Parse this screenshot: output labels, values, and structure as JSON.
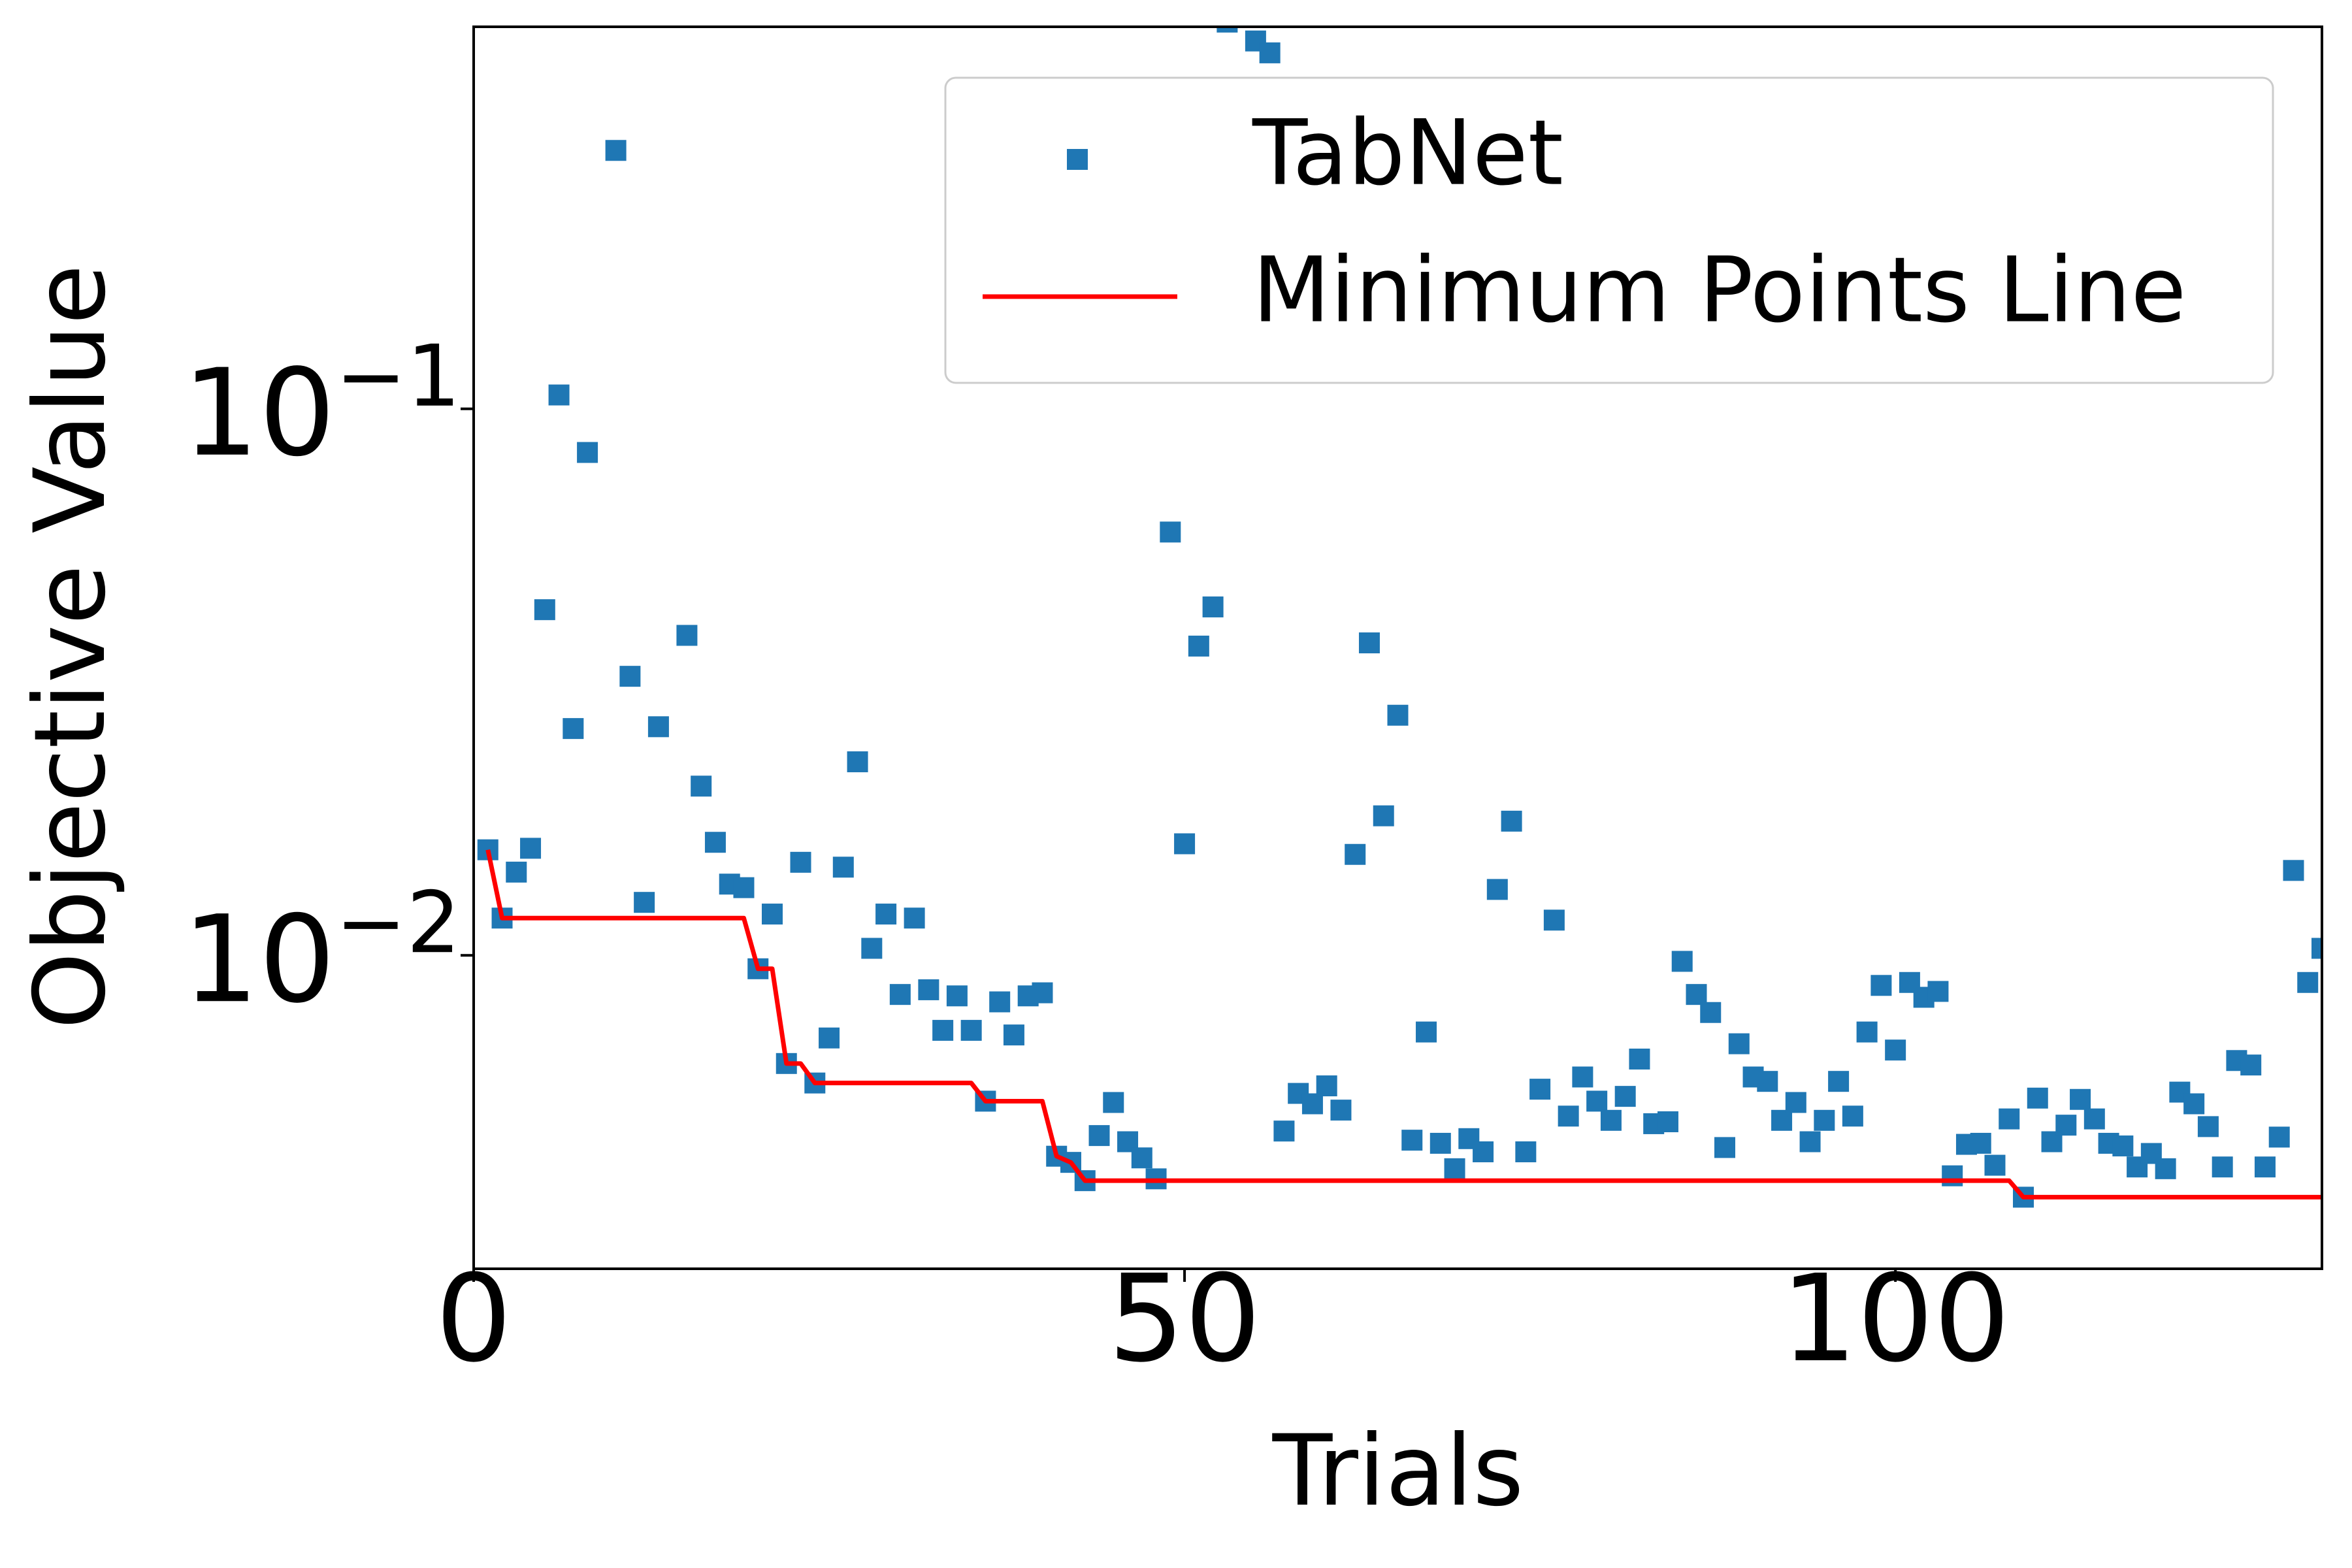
{
  "chart_data": {
    "type": "scatter",
    "xlabel": "Trials",
    "ylabel": "Objective Value",
    "yscale": "log",
    "xlim": [
      0,
      130
    ],
    "ylim": [
      0.00267,
      0.5
    ],
    "xticks": [
      0,
      50,
      100
    ],
    "yticks": [
      {
        "value": 0.01,
        "label": "10",
        "exponent": "−2"
      },
      {
        "value": 0.1,
        "label": "10",
        "exponent": "−1"
      }
    ],
    "legend": "upper right",
    "series": [
      {
        "name": "TabNet",
        "type": "scatter",
        "marker": "square",
        "color": "#1f77b4",
        "x": [
          1,
          2,
          3,
          4,
          5,
          6,
          7,
          8,
          10,
          11,
          12,
          13,
          15,
          16,
          17,
          18,
          19,
          20,
          21,
          22,
          23,
          24,
          25,
          26,
          27,
          28,
          29,
          30,
          31,
          32,
          33,
          34,
          35,
          36,
          37,
          38,
          39,
          40,
          41,
          42,
          43,
          44,
          45,
          46,
          47,
          48,
          49,
          50,
          51,
          52,
          53,
          55,
          56,
          57,
          58,
          59,
          60,
          61,
          62,
          63,
          64,
          65,
          66,
          67,
          68,
          69,
          70,
          71,
          72,
          73,
          74,
          75,
          76,
          77,
          78,
          79,
          80,
          81,
          82,
          83,
          84,
          85,
          86,
          87,
          88,
          89,
          90,
          91,
          92,
          93,
          94,
          95,
          96,
          97,
          98,
          99,
          100,
          101,
          102,
          103,
          104,
          105,
          106,
          107,
          108,
          109,
          110,
          111,
          112,
          113,
          114,
          115,
          116,
          117,
          118,
          119,
          120,
          121,
          122,
          123,
          124,
          125,
          126,
          127,
          128,
          129,
          130
        ],
        "values": [
          0.0156,
          0.0117,
          0.0142,
          0.0157,
          0.0429,
          0.106,
          0.026,
          0.0832,
          0.297,
          0.0324,
          0.0125,
          0.0262,
          0.0385,
          0.0204,
          0.0161,
          0.0135,
          0.0133,
          0.00945,
          0.0119,
          0.00634,
          0.0148,
          0.00584,
          0.00706,
          0.0145,
          0.0226,
          0.0103,
          0.0119,
          0.00848,
          0.0117,
          0.00865,
          0.00729,
          0.00843,
          0.00729,
          0.00541,
          0.00822,
          0.00715,
          0.00843,
          0.00854,
          0.00429,
          0.00418,
          0.00387,
          0.00468,
          0.00538,
          0.00456,
          0.00426,
          0.0039,
          0.0595,
          0.016,
          0.0368,
          0.0434,
          0.51,
          0.471,
          0.448,
          0.00477,
          0.00559,
          0.00535,
          0.00577,
          0.00521,
          0.0153,
          0.0373,
          0.018,
          0.0275,
          0.00459,
          0.00724,
          0.00453,
          0.00407,
          0.00462,
          0.00437,
          0.0132,
          0.0176,
          0.00437,
          0.00569,
          0.0116,
          0.00508,
          0.00599,
          0.00541,
          0.00499,
          0.00552,
          0.00646,
          0.00492,
          0.00496,
          0.00975,
          0.00848,
          0.00786,
          0.00445,
          0.00689,
          0.00599,
          0.00588,
          0.00499,
          0.00538,
          0.00456,
          0.00499,
          0.00588,
          0.00508,
          0.00724,
          0.00881,
          0.00671,
          0.00892,
          0.00838,
          0.00859,
          0.00395,
          0.00451,
          0.00453,
          0.00413,
          0.00502,
          0.00361,
          0.00548,
          0.00456,
          0.00489,
          0.00545,
          0.00502,
          0.00453,
          0.00448,
          0.0041,
          0.00434,
          0.00407,
          0.00562,
          0.00535,
          0.00486,
          0.0041,
          0.00642,
          0.0063,
          0.0041,
          0.00465,
          0.0143,
          0.00892,
          0.0103
        ]
      },
      {
        "name": "Minimum Points Line",
        "type": "line",
        "color": "#ff0000",
        "x": [
          1,
          2,
          19,
          20,
          21,
          22,
          23,
          24,
          35,
          36,
          40,
          41,
          42,
          43,
          108,
          109,
          130
        ],
        "values": [
          0.0156,
          0.0117,
          0.0117,
          0.00945,
          0.00945,
          0.00634,
          0.00634,
          0.00584,
          0.00584,
          0.00541,
          0.00541,
          0.00429,
          0.00418,
          0.00387,
          0.00387,
          0.00361,
          0.00361
        ]
      }
    ]
  }
}
